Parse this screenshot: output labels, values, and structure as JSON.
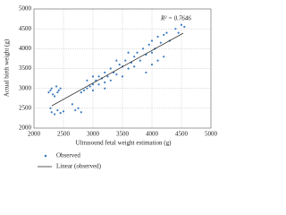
{
  "chart_data": {
    "type": "scatter",
    "xlabel": "Ultrasound fetal weight estimation (g)",
    "ylabel": "Actual birth weight (g)",
    "annotation": "R² = 0.7646",
    "xlim": [
      2000,
      5000
    ],
    "xticks": [
      2000,
      2500,
      3000,
      3500,
      4000,
      4500,
      5000
    ],
    "ylim": [
      2000,
      5000
    ],
    "yticks": [
      2000,
      2500,
      3000,
      3500,
      4000,
      4500,
      5000
    ],
    "grid": true,
    "legend": "bottom",
    "series": [
      {
        "name": "Observed",
        "type": "scatter",
        "color": "#3d7cc0",
        "x": [
          2250,
          2280,
          2300,
          2320,
          2350,
          2380,
          2400,
          2420,
          2450,
          2300,
          2350,
          2400,
          2450,
          2500,
          2280,
          2700,
          2750,
          2800,
          2650,
          2800,
          2850,
          2900,
          2950,
          3000,
          3000,
          3050,
          3100,
          3100,
          3150,
          3200,
          3200,
          3250,
          3300,
          3300,
          3350,
          3400,
          3450,
          3500,
          3500,
          3550,
          3600,
          3650,
          3700,
          3700,
          3750,
          3800,
          3850,
          3900,
          3950,
          4000,
          4000,
          4050,
          4100,
          4150,
          4200,
          4200,
          4250,
          4300,
          4000,
          4100,
          4400,
          4450,
          4500,
          4550,
          3900,
          3600,
          3200,
          2900,
          3000,
          3400
        ],
        "values": [
          2900,
          2950,
          3000,
          2850,
          2800,
          3050,
          2900,
          2950,
          3000,
          2400,
          2350,
          2450,
          2380,
          2420,
          2500,
          2450,
          2500,
          2400,
          2600,
          2900,
          2950,
          3000,
          3050,
          3100,
          2950,
          3200,
          3100,
          3300,
          3250,
          3150,
          3400,
          3300,
          3500,
          3200,
          3400,
          3350,
          3600,
          3550,
          3300,
          3700,
          3500,
          3650,
          3800,
          3550,
          3900,
          3700,
          4000,
          3850,
          4100,
          3900,
          4200,
          4000,
          4300,
          4150,
          4350,
          3800,
          4400,
          4200,
          3600,
          3700,
          4500,
          4400,
          4600,
          4550,
          3400,
          3900,
          3000,
          3200,
          3300,
          3700
        ]
      },
      {
        "name": "Linear (observed)",
        "type": "line",
        "color": "#111111",
        "x": [
          2300,
          4530
        ],
        "values": [
          2560,
          4390
        ]
      }
    ]
  }
}
